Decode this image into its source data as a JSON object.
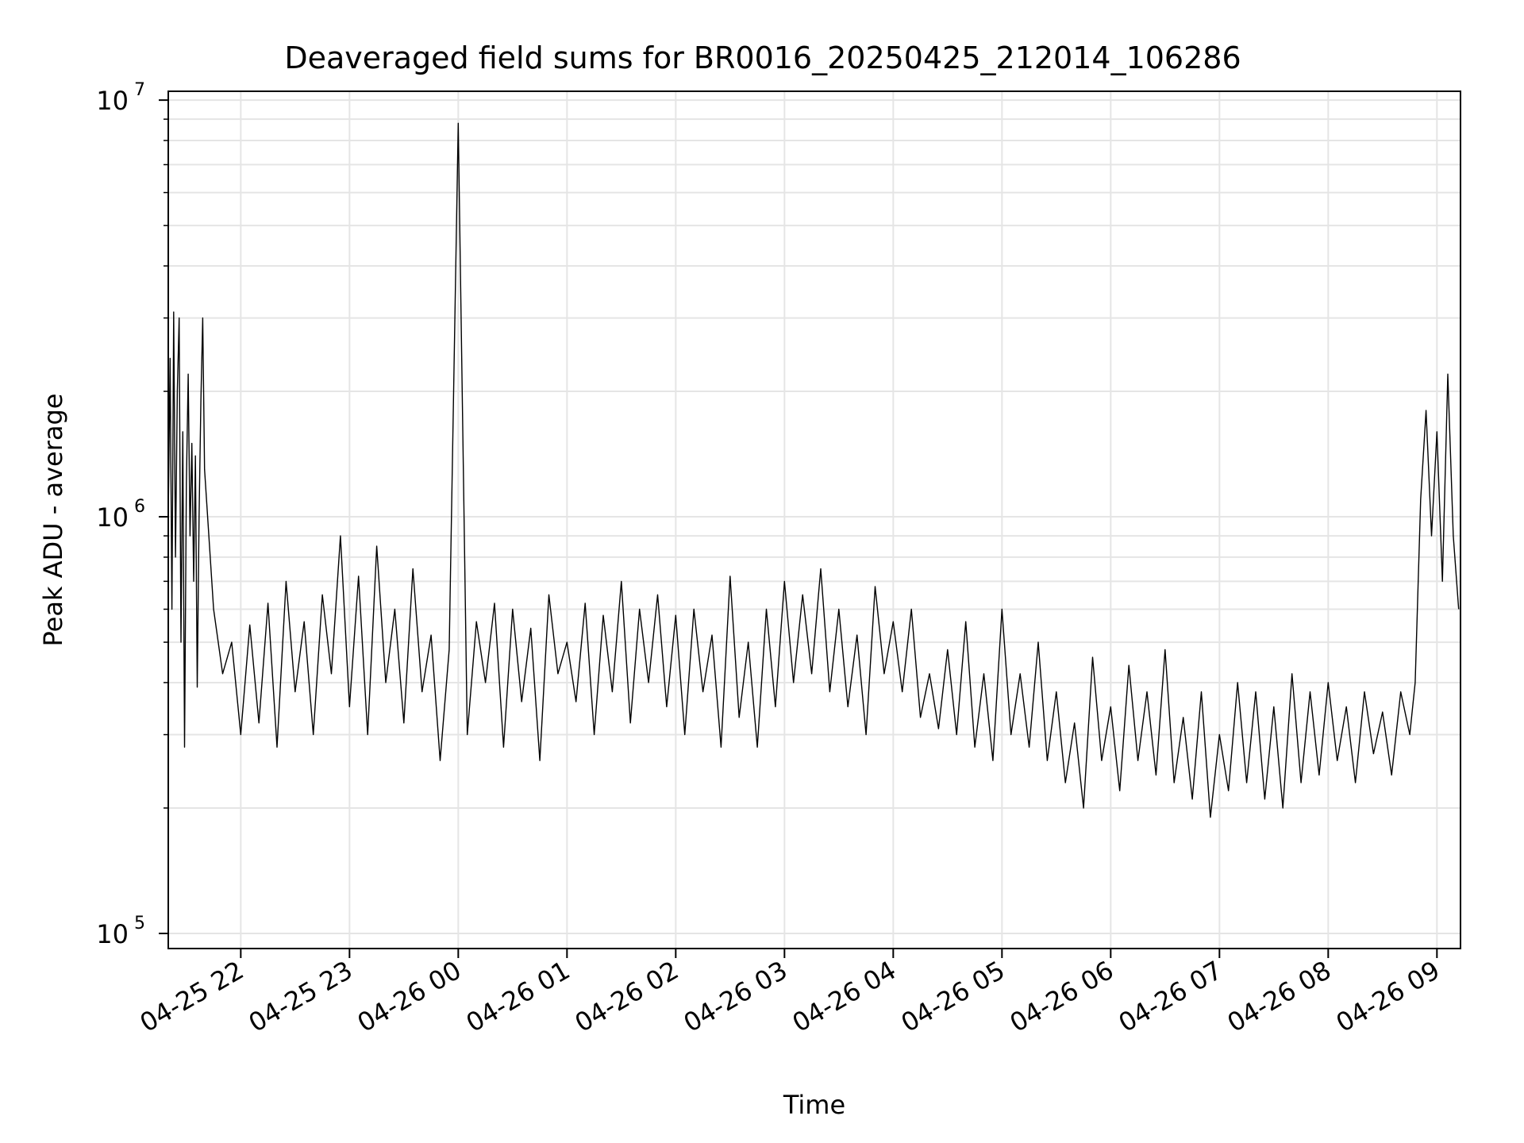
{
  "chart_data": {
    "type": "line",
    "title": "Deaveraged field sums for BR0016_20250425_212014_106286",
    "xlabel": "Time",
    "ylabel": "Peak ADU - average",
    "yscale": "log",
    "ylim": [
      92000,
      10500000
    ],
    "xlim": [
      "2025-04-25 21:20",
      "2025-04-26 09:13"
    ],
    "grid": true,
    "line_color": "#000000",
    "grid_color": "#e5e5e5",
    "x_ticks": [
      {
        "label": "04-25 22",
        "value": "2025-04-25 22:00"
      },
      {
        "label": "04-25 23",
        "value": "2025-04-25 23:00"
      },
      {
        "label": "04-26 00",
        "value": "2025-04-26 00:00"
      },
      {
        "label": "04-26 01",
        "value": "2025-04-26 01:00"
      },
      {
        "label": "04-26 02",
        "value": "2025-04-26 02:00"
      },
      {
        "label": "04-26 03",
        "value": "2025-04-26 03:00"
      },
      {
        "label": "04-26 04",
        "value": "2025-04-26 04:00"
      },
      {
        "label": "04-26 05",
        "value": "2025-04-26 05:00"
      },
      {
        "label": "04-26 06",
        "value": "2025-04-26 06:00"
      },
      {
        "label": "04-26 07",
        "value": "2025-04-26 07:00"
      },
      {
        "label": "04-26 08",
        "value": "2025-04-26 08:00"
      },
      {
        "label": "04-26 09",
        "value": "2025-04-26 09:00"
      }
    ],
    "y_ticks": [
      {
        "base": "10",
        "exp": "5",
        "value": 100000
      },
      {
        "base": "10",
        "exp": "6",
        "value": 1000000
      },
      {
        "base": "10",
        "exp": "7",
        "value": 10000000
      }
    ],
    "series": [
      {
        "x": [
          "2025-04-25 21:20",
          "2025-04-25 21:21",
          "2025-04-25 21:22",
          "2025-04-25 21:23",
          "2025-04-25 21:24",
          "2025-04-25 21:25",
          "2025-04-25 21:26",
          "2025-04-25 21:27",
          "2025-04-25 21:28",
          "2025-04-25 21:29",
          "2025-04-25 21:30",
          "2025-04-25 21:31",
          "2025-04-25 21:32",
          "2025-04-25 21:33",
          "2025-04-25 21:34",
          "2025-04-25 21:35",
          "2025-04-25 21:36",
          "2025-04-25 21:37",
          "2025-04-25 21:38",
          "2025-04-25 21:39",
          "2025-04-25 21:40",
          "2025-04-25 21:45",
          "2025-04-25 21:50",
          "2025-04-25 21:55",
          "2025-04-25 22:00",
          "2025-04-25 22:05",
          "2025-04-25 22:10",
          "2025-04-25 22:15",
          "2025-04-25 22:20",
          "2025-04-25 22:25",
          "2025-04-25 22:30",
          "2025-04-25 22:35",
          "2025-04-25 22:40",
          "2025-04-25 22:45",
          "2025-04-25 22:50",
          "2025-04-25 22:55",
          "2025-04-25 23:00",
          "2025-04-25 23:05",
          "2025-04-25 23:10",
          "2025-04-25 23:15",
          "2025-04-25 23:20",
          "2025-04-25 23:25",
          "2025-04-25 23:30",
          "2025-04-25 23:35",
          "2025-04-25 23:40",
          "2025-04-25 23:45",
          "2025-04-25 23:50",
          "2025-04-25 23:55",
          "2025-04-26 00:00",
          "2025-04-26 00:05",
          "2025-04-26 00:10",
          "2025-04-26 00:15",
          "2025-04-26 00:20",
          "2025-04-26 00:25",
          "2025-04-26 00:30",
          "2025-04-26 00:35",
          "2025-04-26 00:40",
          "2025-04-26 00:45",
          "2025-04-26 00:50",
          "2025-04-26 00:55",
          "2025-04-26 01:00",
          "2025-04-26 01:05",
          "2025-04-26 01:10",
          "2025-04-26 01:15",
          "2025-04-26 01:20",
          "2025-04-26 01:25",
          "2025-04-26 01:30",
          "2025-04-26 01:35",
          "2025-04-26 01:40",
          "2025-04-26 01:45",
          "2025-04-26 01:50",
          "2025-04-26 01:55",
          "2025-04-26 02:00",
          "2025-04-26 02:05",
          "2025-04-26 02:10",
          "2025-04-26 02:15",
          "2025-04-26 02:20",
          "2025-04-26 02:25",
          "2025-04-26 02:30",
          "2025-04-26 02:35",
          "2025-04-26 02:40",
          "2025-04-26 02:45",
          "2025-04-26 02:50",
          "2025-04-26 02:55",
          "2025-04-26 03:00",
          "2025-04-26 03:05",
          "2025-04-26 03:10",
          "2025-04-26 03:15",
          "2025-04-26 03:20",
          "2025-04-26 03:25",
          "2025-04-26 03:30",
          "2025-04-26 03:35",
          "2025-04-26 03:40",
          "2025-04-26 03:45",
          "2025-04-26 03:50",
          "2025-04-26 03:55",
          "2025-04-26 04:00",
          "2025-04-26 04:05",
          "2025-04-26 04:10",
          "2025-04-26 04:15",
          "2025-04-26 04:20",
          "2025-04-26 04:25",
          "2025-04-26 04:30",
          "2025-04-26 04:35",
          "2025-04-26 04:40",
          "2025-04-26 04:45",
          "2025-04-26 04:50",
          "2025-04-26 04:55",
          "2025-04-26 05:00",
          "2025-04-26 05:05",
          "2025-04-26 05:10",
          "2025-04-26 05:15",
          "2025-04-26 05:20",
          "2025-04-26 05:25",
          "2025-04-26 05:30",
          "2025-04-26 05:35",
          "2025-04-26 05:40",
          "2025-04-26 05:45",
          "2025-04-26 05:50",
          "2025-04-26 05:55",
          "2025-04-26 06:00",
          "2025-04-26 06:05",
          "2025-04-26 06:10",
          "2025-04-26 06:15",
          "2025-04-26 06:20",
          "2025-04-26 06:25",
          "2025-04-26 06:30",
          "2025-04-26 06:35",
          "2025-04-26 06:40",
          "2025-04-26 06:45",
          "2025-04-26 06:50",
          "2025-04-26 06:55",
          "2025-04-26 07:00",
          "2025-04-26 07:05",
          "2025-04-26 07:10",
          "2025-04-26 07:15",
          "2025-04-26 07:20",
          "2025-04-26 07:25",
          "2025-04-26 07:30",
          "2025-04-26 07:35",
          "2025-04-26 07:40",
          "2025-04-26 07:45",
          "2025-04-26 07:50",
          "2025-04-26 07:55",
          "2025-04-26 08:00",
          "2025-04-26 08:05",
          "2025-04-26 08:10",
          "2025-04-26 08:15",
          "2025-04-26 08:20",
          "2025-04-26 08:25",
          "2025-04-26 08:30",
          "2025-04-26 08:35",
          "2025-04-26 08:40",
          "2025-04-26 08:45",
          "2025-04-26 08:48",
          "2025-04-26 08:51",
          "2025-04-26 08:54",
          "2025-04-26 08:57",
          "2025-04-26 09:00",
          "2025-04-26 09:03",
          "2025-04-26 09:06",
          "2025-04-26 09:09",
          "2025-04-26 09:12"
        ],
        "y": [
          1000000,
          2400000,
          600000,
          3100000,
          800000,
          2000000,
          3000000,
          500000,
          1600000,
          280000,
          1200000,
          2200000,
          900000,
          1500000,
          700000,
          1400000,
          390000,
          1000000,
          1900000,
          3000000,
          1300000,
          600000,
          420000,
          500000,
          300000,
          550000,
          320000,
          620000,
          280000,
          700000,
          380000,
          560000,
          300000,
          650000,
          420000,
          900000,
          350000,
          720000,
          300000,
          850000,
          400000,
          600000,
          320000,
          750000,
          380000,
          520000,
          260000,
          480000,
          8800000,
          300000,
          560000,
          400000,
          620000,
          280000,
          600000,
          360000,
          540000,
          260000,
          650000,
          420000,
          500000,
          360000,
          620000,
          300000,
          580000,
          380000,
          700000,
          320000,
          600000,
          400000,
          650000,
          350000,
          580000,
          300000,
          600000,
          380000,
          520000,
          280000,
          720000,
          330000,
          500000,
          280000,
          600000,
          350000,
          700000,
          400000,
          650000,
          420000,
          750000,
          380000,
          600000,
          350000,
          520000,
          300000,
          680000,
          420000,
          560000,
          380000,
          600000,
          330000,
          420000,
          310000,
          480000,
          300000,
          560000,
          280000,
          420000,
          260000,
          600000,
          300000,
          420000,
          280000,
          500000,
          260000,
          380000,
          230000,
          320000,
          200000,
          460000,
          260000,
          350000,
          220000,
          440000,
          260000,
          380000,
          240000,
          480000,
          230000,
          330000,
          210000,
          380000,
          190000,
          300000,
          220000,
          400000,
          230000,
          380000,
          210000,
          350000,
          200000,
          420000,
          230000,
          380000,
          240000,
          400000,
          260000,
          350000,
          230000,
          380000,
          270000,
          340000,
          240000,
          380000,
          300000,
          400000,
          1100000,
          1800000,
          900000,
          1600000,
          700000,
          2200000,
          900000,
          600000
        ]
      }
    ]
  }
}
